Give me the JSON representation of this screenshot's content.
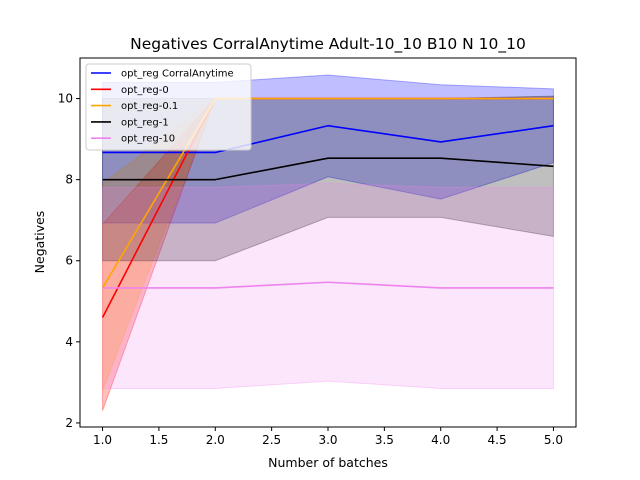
{
  "chart_data": {
    "type": "line",
    "title": "Negatives CorralAnytime Adult-10_10 B10 N 10_10",
    "xlabel": "Number of batches",
    "ylabel": "Negatives",
    "xlim": [
      0.8,
      5.2
    ],
    "ylim": [
      1.9,
      11.0
    ],
    "xticks": [
      1.0,
      1.5,
      2.0,
      2.5,
      3.0,
      3.5,
      4.0,
      4.5,
      5.0
    ],
    "xtick_labels": [
      "1.0",
      "1.5",
      "2.0",
      "2.5",
      "3.0",
      "3.5",
      "4.0",
      "4.5",
      "5.0"
    ],
    "yticks": [
      2,
      4,
      6,
      8,
      10
    ],
    "ytick_labels": [
      "2",
      "4",
      "6",
      "8",
      "10"
    ],
    "grid": false,
    "legend_position": "top-left",
    "x": [
      1,
      2,
      3,
      4,
      5
    ],
    "series": [
      {
        "name": "opt_reg CorralAnytime",
        "color": "#0000ff",
        "values": [
          8.67,
          8.67,
          9.33,
          8.93,
          9.33
        ],
        "lower": [
          6.93,
          6.93,
          8.07,
          7.52,
          8.42
        ],
        "upper": [
          10.4,
          10.4,
          10.58,
          10.34,
          10.24
        ]
      },
      {
        "name": "opt_reg-0",
        "color": "#ff0000",
        "values": [
          4.6,
          10.0,
          10.0,
          10.0,
          10.0
        ],
        "lower": [
          2.3,
          10.0,
          10.0,
          10.0,
          10.0
        ],
        "upper": [
          6.9,
          10.0,
          10.0,
          10.0,
          10.0
        ]
      },
      {
        "name": "opt_reg-0.1",
        "color": "#ffa500",
        "values": [
          5.33,
          10.0,
          10.0,
          10.0,
          10.0
        ],
        "lower": [
          2.8,
          10.0,
          10.0,
          10.0,
          10.0
        ],
        "upper": [
          7.9,
          10.0,
          10.0,
          10.0,
          10.0
        ]
      },
      {
        "name": "opt_reg-1",
        "color": "#000000",
        "values": [
          8.0,
          8.0,
          8.53,
          8.53,
          8.33
        ],
        "lower": [
          6.0,
          6.0,
          7.07,
          7.07,
          6.6
        ],
        "upper": [
          10.0,
          10.0,
          10.0,
          10.0,
          10.06
        ]
      },
      {
        "name": "opt_reg-10",
        "color": "#ee82ee",
        "values": [
          5.33,
          5.33,
          5.47,
          5.33,
          5.33
        ],
        "lower": [
          2.85,
          2.85,
          3.03,
          2.85,
          2.85
        ],
        "upper": [
          7.81,
          7.81,
          7.91,
          7.81,
          7.81
        ]
      }
    ]
  }
}
